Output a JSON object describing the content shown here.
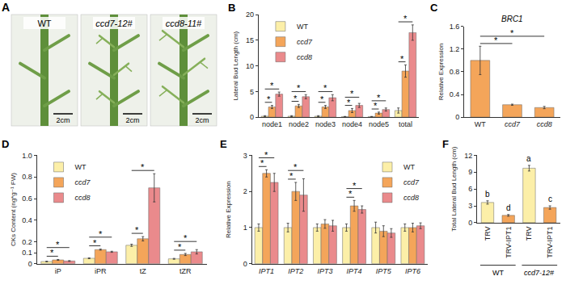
{
  "photo_panel": {
    "label": "A",
    "images": [
      {
        "label": "WT",
        "scale_bar": "2cm"
      },
      {
        "label": "ccd7-12#",
        "scale_bar": "2cm"
      },
      {
        "label": "ccd8-11#",
        "scale_bar": "2cm"
      }
    ]
  },
  "chart_data": [
    {
      "label": "B",
      "type": "bar",
      "categories": [
        "node1",
        "node2",
        "node3",
        "node4",
        "node5",
        "total"
      ],
      "series": [
        {
          "name": "WT",
          "color": "#fcefa8",
          "values": [
            0.2,
            0.2,
            0.2,
            0.1,
            0.1,
            1.3
          ],
          "errors": [
            0.1,
            0.1,
            0.1,
            0.05,
            0.05,
            0.5
          ]
        },
        {
          "name": "ccd7",
          "color": "#f4a55a",
          "values": [
            2.0,
            2.2,
            2.0,
            1.3,
            0.8,
            9.0
          ],
          "errors": [
            0.3,
            0.3,
            0.3,
            0.4,
            0.2,
            1.2
          ]
        },
        {
          "name": "ccd8",
          "color": "#ea8a8c",
          "values": [
            4.5,
            4.0,
            3.8,
            2.3,
            1.5,
            16.5
          ],
          "errors": [
            0.4,
            0.4,
            0.6,
            0.4,
            0.3,
            1.5
          ]
        }
      ],
      "y_label": "Lateral Bud Length (cm)",
      "ylim": [
        0,
        20
      ],
      "yticks": [
        0,
        5,
        10,
        15,
        20
      ],
      "legend": "top left",
      "annotations": [
        {
          "text": "*",
          "category": "node1",
          "pair": [
            "WT",
            "ccd7"
          ]
        },
        {
          "text": "*",
          "category": "node1",
          "pair": [
            "WT",
            "ccd8"
          ]
        },
        {
          "text": "*",
          "category": "node2",
          "pair": [
            "WT",
            "ccd7"
          ]
        },
        {
          "text": "*",
          "category": "node2",
          "pair": [
            "WT",
            "ccd8"
          ]
        },
        {
          "text": "*",
          "category": "node3",
          "pair": [
            "WT",
            "ccd7"
          ]
        },
        {
          "text": "*",
          "category": "node3",
          "pair": [
            "WT",
            "ccd8"
          ]
        },
        {
          "text": "*",
          "category": "node4",
          "pair": [
            "WT",
            "ccd7"
          ]
        },
        {
          "text": "*",
          "category": "node4",
          "pair": [
            "WT",
            "ccd8"
          ]
        },
        {
          "text": "*",
          "category": "node5",
          "pair": [
            "WT",
            "ccd7"
          ]
        },
        {
          "text": "*",
          "category": "node5",
          "pair": [
            "WT",
            "ccd8"
          ]
        },
        {
          "text": "*",
          "category": "total",
          "pair": [
            "WT",
            "ccd7"
          ]
        },
        {
          "text": "*",
          "category": "total",
          "pair": [
            "WT",
            "ccd8"
          ]
        }
      ]
    },
    {
      "label": "C",
      "type": "bar",
      "title": "BRC1",
      "categories": [
        "WT",
        "ccd7",
        "ccd8"
      ],
      "values": [
        1.0,
        0.22,
        0.17
      ],
      "errors": [
        0.25,
        0.01,
        0.02
      ],
      "color": "#f4a55a",
      "y_label": "Relative Expression",
      "ylim": [
        0,
        1.6
      ],
      "yticks": [
        0,
        0.4,
        0.8,
        1.2,
        1.6
      ],
      "annotations": [
        {
          "text": "*",
          "pair": [
            "WT",
            "ccd7"
          ]
        },
        {
          "text": "*",
          "pair": [
            "WT",
            "ccd8"
          ]
        }
      ]
    },
    {
      "label": "D",
      "type": "bar",
      "categories": [
        "iP",
        "iPR",
        "tZ",
        "tZR"
      ],
      "series": [
        {
          "name": "WT",
          "color": "#fcefa8",
          "values": [
            0.02,
            0.05,
            0.17,
            0.045
          ],
          "errors": [
            0.003,
            0.004,
            0.01,
            0.004
          ]
        },
        {
          "name": "ccd7",
          "color": "#f4a55a",
          "values": [
            0.035,
            0.13,
            0.23,
            0.085
          ],
          "errors": [
            0.004,
            0.005,
            0.02,
            0.01
          ]
        },
        {
          "name": "ccd8",
          "color": "#ea8a8c",
          "values": [
            0.025,
            0.11,
            0.7,
            0.11
          ],
          "errors": [
            0.003,
            0.005,
            0.13,
            0.02
          ]
        }
      ],
      "y_label": "CKs Content (ng*g⁻¹ FW)",
      "ylim": [
        0,
        1
      ],
      "yticks": [
        0,
        0.1,
        0.2,
        0.4,
        0.6,
        0.8,
        {
          "value": 1,
          "label": "1.0"
        }
      ],
      "legend": "top left",
      "annotations": [
        {
          "text": "*",
          "category": "iP",
          "pair": [
            "WT",
            "ccd7"
          ]
        },
        {
          "text": "*",
          "category": "iP",
          "pair": [
            "WT",
            "ccd8"
          ]
        },
        {
          "text": "*",
          "category": "iPR",
          "pair": [
            "WT",
            "ccd7"
          ]
        },
        {
          "text": "*",
          "category": "iPR",
          "pair": [
            "WT",
            "ccd8"
          ]
        },
        {
          "text": "*",
          "category": "tZ",
          "pair": [
            "WT",
            "ccd7"
          ]
        },
        {
          "text": "*",
          "category": "tZ",
          "pair": [
            "WT",
            "ccd8"
          ]
        },
        {
          "text": "*",
          "category": "tZR",
          "pair": [
            "WT",
            "ccd7"
          ]
        },
        {
          "text": "*",
          "category": "tZR",
          "pair": [
            "WT",
            "ccd8"
          ]
        }
      ]
    },
    {
      "label": "E",
      "type": "bar",
      "categories": [
        "IPT1",
        "IPT2",
        "IPT3",
        "IPT4",
        "IPT5",
        "IPT6"
      ],
      "series": [
        {
          "name": "WT",
          "color": "#fcefa8",
          "values": [
            1.0,
            1.0,
            1.0,
            1.0,
            1.0,
            1.0
          ],
          "errors": [
            0.1,
            0.12,
            0.1,
            0.1,
            0.15,
            0.1
          ]
        },
        {
          "name": "ccd7",
          "color": "#f4a55a",
          "values": [
            2.5,
            2.0,
            1.1,
            1.6,
            0.9,
            1.0
          ],
          "errors": [
            0.1,
            0.25,
            0.12,
            0.15,
            0.15,
            0.12
          ]
        },
        {
          "name": "ccd8",
          "color": "#ea8a8c",
          "values": [
            2.25,
            1.9,
            1.05,
            1.5,
            0.85,
            1.05
          ],
          "errors": [
            0.25,
            0.45,
            0.15,
            0.1,
            0.12,
            0.08
          ]
        }
      ],
      "y_label": "Relative Expression",
      "ylim": [
        0,
        3
      ],
      "yticks": [
        0,
        1,
        2,
        3
      ],
      "legend": "top right",
      "annotations": [
        {
          "text": "*",
          "category": "IPT1",
          "pair": [
            "WT",
            "ccd7"
          ]
        },
        {
          "text": "*",
          "category": "IPT1",
          "pair": [
            "WT",
            "ccd8"
          ]
        },
        {
          "text": "*",
          "category": "IPT2",
          "pair": [
            "WT",
            "ccd7"
          ]
        },
        {
          "text": "*",
          "category": "IPT2",
          "pair": [
            "WT",
            "ccd8"
          ]
        },
        {
          "text": "*",
          "category": "IPT4",
          "pair": [
            "WT",
            "ccd7"
          ]
        },
        {
          "text": "*",
          "category": "IPT4",
          "pair": [
            "WT",
            "ccd8"
          ]
        }
      ]
    },
    {
      "label": "F",
      "type": "bar",
      "categories": [
        "TRV",
        "TRV-IPT1",
        "TRV",
        "TRV-IPT1"
      ],
      "group_labels": [
        "WT",
        "WT",
        "ccd7-12#",
        "ccd7-12#"
      ],
      "values": [
        3.6,
        1.3,
        9.7,
        2.7
      ],
      "errors": [
        0.3,
        0.15,
        0.5,
        0.3
      ],
      "colors": [
        "#fcefa8",
        "#f4a55a",
        "#fcefa8",
        "#f4a55a"
      ],
      "y_label": "Total Lateral Bud Length (cm)",
      "ylim": [
        0,
        12
      ],
      "yticks": [
        0,
        3,
        6,
        9,
        12
      ],
      "annotations": [
        {
          "text": "b",
          "index": 0
        },
        {
          "text": "d",
          "index": 1
        },
        {
          "text": "a",
          "index": 2
        },
        {
          "text": "c",
          "index": 3
        }
      ]
    }
  ]
}
